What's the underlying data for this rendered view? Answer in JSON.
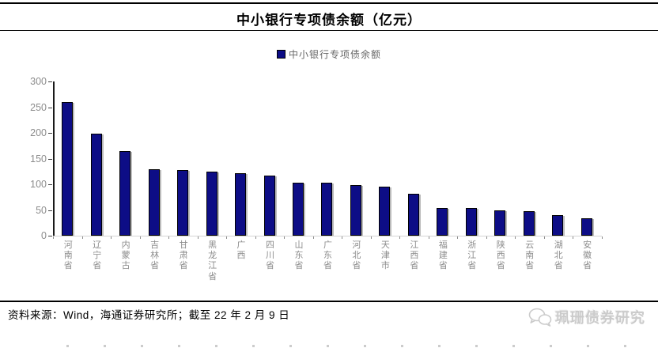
{
  "header": {
    "title": "中小银行专项债余额（亿元）"
  },
  "legend": {
    "label": "中小银行专项债余额",
    "swatch_color": "#0d0d86"
  },
  "chart_data": {
    "type": "bar",
    "title": "中小银行专项债余额（亿元）",
    "legend_entries": [
      "中小银行专项债余额"
    ],
    "categories": [
      "河南省",
      "辽宁省",
      "内蒙古",
      "吉林省",
      "甘肃省",
      "黑龙江省",
      "广西",
      "四川省",
      "山东省",
      "广东省",
      "河北省",
      "天津市",
      "江西省",
      "福建省",
      "浙江省",
      "陕西省",
      "云南省",
      "湖北省",
      "安徽省"
    ],
    "values": [
      257,
      196,
      162,
      126,
      125,
      122,
      118,
      114,
      100,
      100,
      96,
      93,
      78,
      50,
      50,
      46,
      44,
      37,
      30
    ],
    "ylabel": "",
    "xlabel": "",
    "ylim": [
      0,
      300
    ],
    "yticks": [
      0,
      50,
      100,
      150,
      200,
      250,
      300
    ],
    "grid": false,
    "legend_position": "top",
    "bar_color": "#0d0d86"
  },
  "footer": {
    "source": "资料来源：Wind，海通证券研究所；截至 22 年 2 月 9 日",
    "watermark": "珮珊债券研究"
  }
}
